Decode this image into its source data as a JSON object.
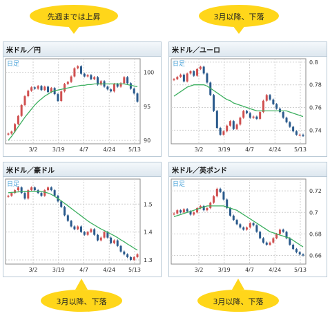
{
  "callouts": [
    {
      "text": "先週までは上昇",
      "fill": "#ffd61a"
    },
    {
      "text": "3月以降、下落",
      "fill": "#ffd61a"
    },
    {
      "text": "3月以降、下落",
      "fill": "#ffd61a"
    },
    {
      "text": "3月以降、下落",
      "fill": "#ffd61a"
    }
  ],
  "colors": {
    "up": "#d05050",
    "down": "#2a5a8c",
    "ma": "#3caf5f",
    "grid": "#cfcfcf",
    "legend": "#4aa3d8"
  },
  "chart_data": [
    {
      "type": "line",
      "title": "米ドル／円",
      "period_label": "日足",
      "x_ticks": [
        "3/2",
        "3/19",
        "4/7",
        "4/24",
        "5/13"
      ],
      "ylim": [
        89.5,
        102
      ],
      "y_ticks": [
        90,
        95,
        100
      ],
      "series": [
        {
          "name": "",
          "values": [
            91.0,
            91.3,
            92.4,
            93.6,
            95.2,
            96.5,
            97.3,
            97.8,
            97.6,
            98.0,
            97.4,
            97.9,
            97.1,
            97.7,
            96.8,
            95.8,
            97.2,
            98.3,
            98.6,
            99.4,
            100.6,
            100.9,
            99.8,
            99.4,
            99.6,
            99.0,
            99.3,
            98.2,
            98.7,
            97.9,
            97.5,
            97.2,
            98.3,
            97.9,
            98.4,
            99.3,
            98.4,
            97.6,
            96.9,
            95.7
          ]
        },
        {
          "name": "",
          "values": [
            90.0,
            90.6,
            91.3,
            92.0,
            92.7,
            93.4,
            94.0,
            94.6,
            95.2,
            95.7,
            96.1,
            96.5,
            96.8,
            97.1,
            97.3,
            97.4,
            97.5,
            97.6,
            97.7,
            97.8,
            97.9,
            98.0,
            98.1,
            98.1,
            98.2,
            98.2,
            98.3,
            98.3,
            98.3,
            98.3,
            98.3,
            98.3,
            98.3,
            98.3,
            98.3,
            98.3,
            98.2,
            98.1,
            98.0,
            97.9
          ]
        }
      ]
    },
    {
      "type": "line",
      "title": "米ドル／ユーロ",
      "period_label": "日足",
      "x_ticks": [
        "3/2",
        "3/19",
        "4/7",
        "4/24",
        "5/13"
      ],
      "ylim": [
        0.728,
        0.803
      ],
      "y_ticks": [
        0.74,
        0.76,
        0.78,
        0.8
      ],
      "y_tick_labels": [
        "0.74",
        "0.76",
        "0.78",
        "0.8"
      ],
      "series": [
        {
          "name": "",
          "values": [
            0.785,
            0.787,
            0.789,
            0.783,
            0.79,
            0.792,
            0.788,
            0.794,
            0.796,
            0.79,
            0.782,
            0.771,
            0.757,
            0.742,
            0.736,
            0.739,
            0.744,
            0.748,
            0.741,
            0.745,
            0.751,
            0.757,
            0.755,
            0.751,
            0.752,
            0.75,
            0.756,
            0.766,
            0.771,
            0.767,
            0.763,
            0.759,
            0.756,
            0.751,
            0.747,
            0.743,
            0.739,
            0.736,
            0.736,
            0.735
          ]
        },
        {
          "name": "",
          "values": [
            0.77,
            0.772,
            0.774,
            0.776,
            0.778,
            0.779,
            0.78,
            0.78,
            0.78,
            0.78,
            0.779,
            0.777,
            0.775,
            0.773,
            0.771,
            0.769,
            0.767,
            0.766,
            0.764,
            0.763,
            0.762,
            0.761,
            0.76,
            0.759,
            0.758,
            0.757,
            0.757,
            0.757,
            0.757,
            0.757,
            0.757,
            0.757,
            0.757,
            0.757,
            0.757,
            0.756,
            0.755,
            0.754,
            0.753,
            0.752
          ]
        }
      ]
    },
    {
      "type": "line",
      "title": "米ドル／豪ドル",
      "period_label": "日足",
      "x_ticks": [
        "3/2",
        "3/19",
        "4/7",
        "4/24",
        "5/13"
      ],
      "ylim": [
        1.285,
        1.59
      ],
      "y_ticks": [
        1.3,
        1.4,
        1.5
      ],
      "y_tick_labels": [
        "1.3",
        "1.4",
        "1.5"
      ],
      "series": [
        {
          "name": "",
          "values": [
            1.53,
            1.54,
            1.55,
            1.56,
            1.54,
            1.52,
            1.55,
            1.56,
            1.55,
            1.54,
            1.53,
            1.55,
            1.56,
            1.55,
            1.53,
            1.51,
            1.49,
            1.46,
            1.44,
            1.42,
            1.41,
            1.42,
            1.4,
            1.39,
            1.4,
            1.41,
            1.39,
            1.37,
            1.38,
            1.4,
            1.38,
            1.36,
            1.37,
            1.35,
            1.33,
            1.32,
            1.31,
            1.3,
            1.31,
            1.32
          ]
        },
        {
          "name": "",
          "values": [
            1.541,
            1.542,
            1.543,
            1.544,
            1.545,
            1.546,
            1.546,
            1.546,
            1.546,
            1.546,
            1.545,
            1.543,
            1.54,
            1.535,
            1.528,
            1.52,
            1.512,
            1.503,
            1.494,
            1.485,
            1.476,
            1.467,
            1.458,
            1.449,
            1.44,
            1.432,
            1.425,
            1.418,
            1.411,
            1.405,
            1.399,
            1.393,
            1.387,
            1.38,
            1.372,
            1.365,
            1.357,
            1.35,
            1.342,
            1.335
          ]
        }
      ]
    },
    {
      "type": "line",
      "title": "米ドル／英ポンド",
      "period_label": "日足",
      "x_ticks": [
        "3/2",
        "3/19",
        "4/7",
        "4/24",
        "5/13"
      ],
      "ylim": [
        0.652,
        0.731
      ],
      "y_ticks": [
        0.66,
        0.68,
        0.7,
        0.72
      ],
      "y_tick_labels": [
        "0.66",
        "0.68",
        "0.7",
        "0.72"
      ],
      "series": [
        {
          "name": "",
          "values": [
            0.699,
            0.702,
            0.7,
            0.703,
            0.701,
            0.698,
            0.7,
            0.704,
            0.706,
            0.702,
            0.704,
            0.709,
            0.715,
            0.722,
            0.719,
            0.712,
            0.704,
            0.697,
            0.693,
            0.689,
            0.686,
            0.684,
            0.686,
            0.69,
            0.688,
            0.682,
            0.676,
            0.672,
            0.67,
            0.672,
            0.676,
            0.68,
            0.684,
            0.682,
            0.676,
            0.67,
            0.666,
            0.663,
            0.661,
            0.66
          ]
        },
        {
          "name": "",
          "values": [
            0.696,
            0.697,
            0.698,
            0.699,
            0.7,
            0.701,
            0.702,
            0.703,
            0.704,
            0.705,
            0.706,
            0.706,
            0.706,
            0.706,
            0.706,
            0.706,
            0.705,
            0.704,
            0.703,
            0.702,
            0.7,
            0.698,
            0.696,
            0.694,
            0.692,
            0.69,
            0.688,
            0.686,
            0.684,
            0.682,
            0.681,
            0.68,
            0.679,
            0.678,
            0.677,
            0.676,
            0.674,
            0.672,
            0.67,
            0.668
          ]
        }
      ]
    }
  ]
}
